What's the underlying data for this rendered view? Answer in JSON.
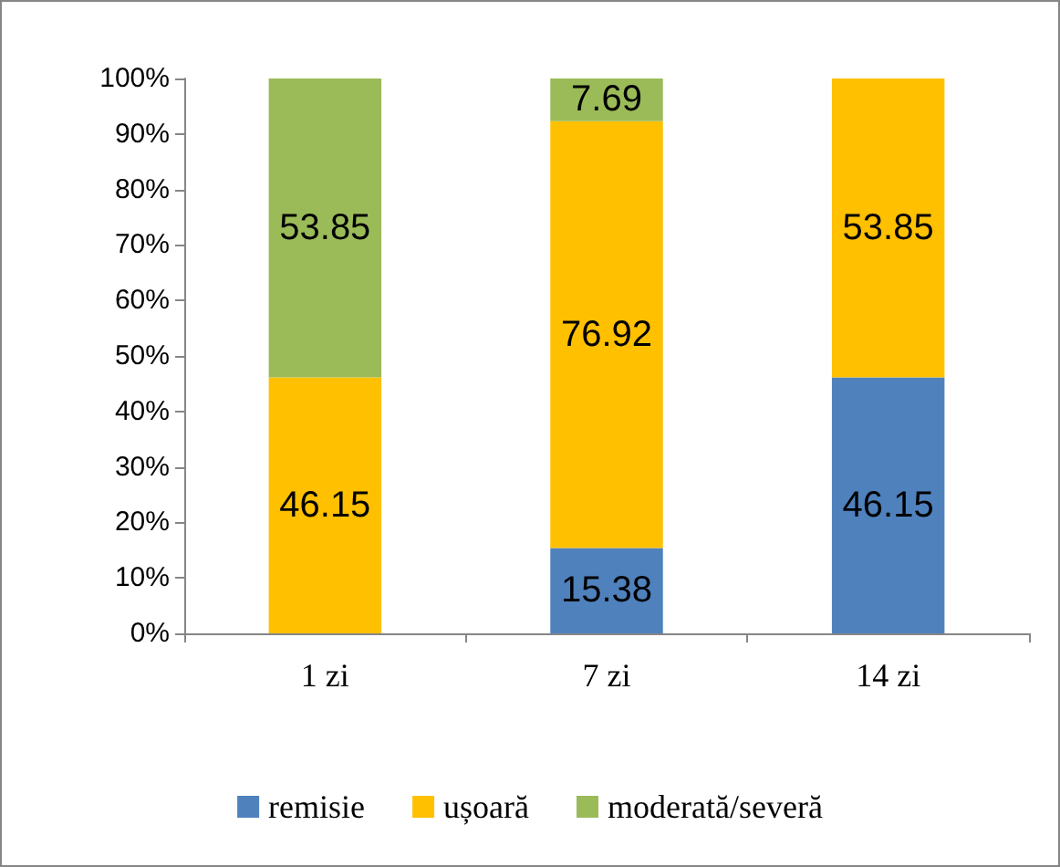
{
  "chart_data": {
    "type": "bar",
    "stacked": true,
    "categories": [
      "1 zi",
      "7 zi",
      "14 zi"
    ],
    "series": [
      {
        "name": "remisie",
        "color": "#4f81bd",
        "values": [
          0,
          15.38,
          46.15
        ],
        "value_labels": [
          null,
          "15.38",
          "46.15"
        ]
      },
      {
        "name": "ușoară",
        "color": "#ffc000",
        "values": [
          46.15,
          76.92,
          53.85
        ],
        "value_labels": [
          "46.15",
          "76.92",
          "53.85"
        ]
      },
      {
        "name": "moderată/severă",
        "color": "#9bbb59",
        "values": [
          53.85,
          7.69,
          0
        ],
        "value_labels": [
          "53.85",
          "7.69",
          null
        ]
      }
    ],
    "ylim": [
      0,
      100
    ],
    "yticks": [
      {
        "value": 0,
        "label": "0%"
      },
      {
        "value": 10,
        "label": "10%"
      },
      {
        "value": 20,
        "label": "20%"
      },
      {
        "value": 30,
        "label": "30%"
      },
      {
        "value": 40,
        "label": "40%"
      },
      {
        "value": 50,
        "label": "50%"
      },
      {
        "value": 60,
        "label": "60%"
      },
      {
        "value": 70,
        "label": "70%"
      },
      {
        "value": 80,
        "label": "80%"
      },
      {
        "value": 90,
        "label": "90%"
      },
      {
        "value": 100,
        "label": "100%"
      }
    ],
    "grid": false,
    "legend": "bottom"
  }
}
